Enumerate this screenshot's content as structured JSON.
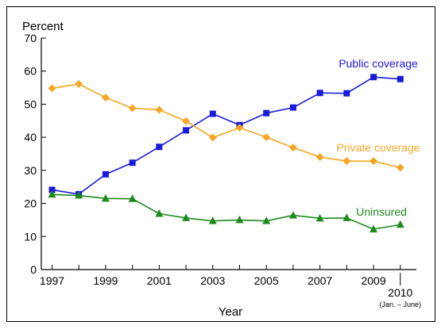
{
  "chart_data": {
    "type": "line",
    "ylabel": "Percent",
    "xlabel": "Year",
    "ylim": [
      0,
      70
    ],
    "yticks": [
      0,
      10,
      20,
      30,
      40,
      50,
      60,
      70
    ],
    "x": [
      1997,
      1998,
      1999,
      2000,
      2001,
      2002,
      2003,
      2004,
      2005,
      2006,
      2007,
      2008,
      2009,
      2010
    ],
    "xtick_labels": [
      {
        "x": 1997,
        "label": "1997"
      },
      {
        "x": 1999,
        "label": "1999"
      },
      {
        "x": 2001,
        "label": "2001"
      },
      {
        "x": 2003,
        "label": "2003"
      },
      {
        "x": 2005,
        "label": "2005"
      },
      {
        "x": 2007,
        "label": "2007"
      },
      {
        "x": 2009,
        "label": "2009"
      },
      {
        "x": 2010,
        "label": "2010",
        "sublabel": "(Jan. – June)"
      }
    ],
    "grid": false,
    "series": [
      {
        "name": "Public coverage",
        "color": "#1a1adb",
        "marker": "square",
        "values": [
          24.1,
          22.8,
          28.8,
          32.3,
          37.1,
          42.1,
          47.1,
          43.7,
          47.3,
          49.0,
          53.4,
          53.3,
          58.2,
          57.6
        ]
      },
      {
        "name": "Private coverage",
        "color": "#f5a623",
        "marker": "diamond",
        "values": [
          54.8,
          56.1,
          52.0,
          48.8,
          48.3,
          44.9,
          39.9,
          42.9,
          40.0,
          36.9,
          34.0,
          32.8,
          32.8,
          30.8
        ]
      },
      {
        "name": "Uninsured",
        "color": "#1e8a1e",
        "marker": "triangle",
        "values": [
          22.7,
          22.4,
          21.5,
          21.4,
          16.9,
          15.6,
          14.7,
          15.0,
          14.7,
          16.4,
          15.5,
          15.6,
          12.2,
          13.6
        ]
      }
    ]
  }
}
